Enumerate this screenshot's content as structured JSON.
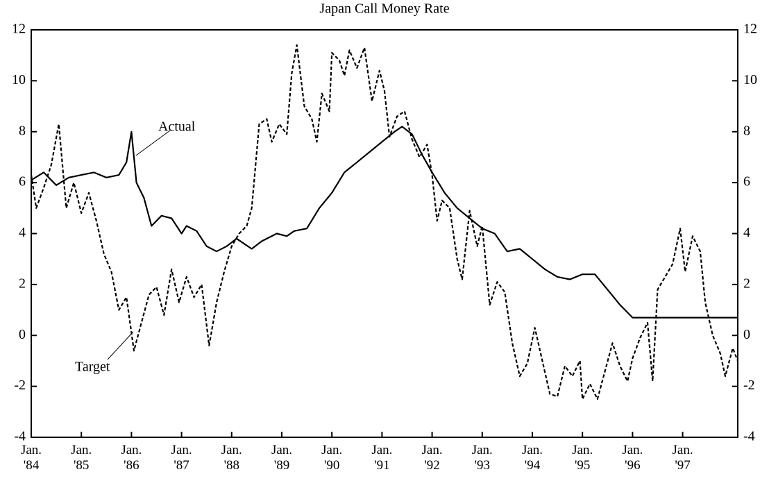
{
  "chart_data": {
    "type": "line",
    "title": "Japan Call Money Rate",
    "annotations": [
      "Actual",
      "Target"
    ],
    "xlim": [
      1984,
      1998.1
    ],
    "xticks": [
      {
        "value": 1984,
        "label": "Jan. '84"
      },
      {
        "value": 1985,
        "label": "Jan. '85"
      },
      {
        "value": 1986,
        "label": "Jan. '86"
      },
      {
        "value": 1987,
        "label": "Jan. '87"
      },
      {
        "value": 1988,
        "label": "Jan. '88"
      },
      {
        "value": 1989,
        "label": "Jan. '89"
      },
      {
        "value": 1990,
        "label": "Jan. '90"
      },
      {
        "value": 1991,
        "label": "Jan. '91"
      },
      {
        "value": 1992,
        "label": "Jan. '92"
      },
      {
        "value": 1993,
        "label": "Jan. '93"
      },
      {
        "value": 1994,
        "label": "Jan. '94"
      },
      {
        "value": 1995,
        "label": "Jan. '95"
      },
      {
        "value": 1996,
        "label": "Jan. '96"
      },
      {
        "value": 1997,
        "label": "Jan. '97"
      }
    ],
    "ylim": [
      -4,
      12
    ],
    "yticks": [
      -4,
      -2,
      0,
      2,
      4,
      6,
      8,
      10,
      12
    ],
    "y2lim": [
      -4,
      12
    ],
    "y2ticks": [
      -4,
      -2,
      0,
      2,
      4,
      6,
      8,
      10,
      12
    ],
    "grid": false,
    "series": [
      {
        "name": "Actual",
        "color": "#000000",
        "dash": false,
        "x": [
          1984.0,
          1984.25,
          1984.5,
          1984.75,
          1985.0,
          1985.25,
          1985.5,
          1985.75,
          1985.9,
          1986.0,
          1986.1,
          1986.25,
          1986.4,
          1986.6,
          1986.8,
          1987.0,
          1987.1,
          1987.3,
          1987.5,
          1987.7,
          1987.9,
          1988.1,
          1988.25,
          1988.4,
          1988.6,
          1988.9,
          1989.1,
          1989.25,
          1989.5,
          1989.75,
          1990.0,
          1990.25,
          1990.5,
          1990.75,
          1991.0,
          1991.25,
          1991.4,
          1991.6,
          1991.8,
          1992.0,
          1992.25,
          1992.5,
          1992.75,
          1993.0,
          1993.25,
          1993.5,
          1993.75,
          1994.0,
          1994.25,
          1994.5,
          1994.75,
          1995.0,
          1995.25,
          1995.5,
          1995.75,
          1996.0,
          1996.5,
          1997.0,
          1997.5,
          1998.1
        ],
        "values": [
          6.1,
          6.4,
          5.9,
          6.2,
          6.3,
          6.4,
          6.2,
          6.3,
          6.8,
          8.0,
          6.0,
          5.4,
          4.3,
          4.7,
          4.6,
          4.0,
          4.3,
          4.1,
          3.5,
          3.3,
          3.5,
          3.8,
          3.6,
          3.4,
          3.7,
          4.0,
          3.9,
          4.1,
          4.2,
          5.0,
          5.6,
          6.4,
          6.8,
          7.2,
          7.6,
          8.0,
          8.2,
          7.9,
          7.1,
          6.4,
          5.6,
          5.0,
          4.6,
          4.2,
          4.0,
          3.3,
          3.4,
          3.0,
          2.6,
          2.3,
          2.2,
          2.4,
          2.4,
          1.8,
          1.2,
          0.7,
          0.7,
          0.7,
          0.7,
          0.7
        ]
      },
      {
        "name": "Target",
        "color": "#000000",
        "dash": true,
        "x": [
          1984.0,
          1984.1,
          1984.25,
          1984.4,
          1984.55,
          1984.7,
          1984.85,
          1985.0,
          1985.15,
          1985.3,
          1985.45,
          1985.6,
          1985.75,
          1985.9,
          1986.05,
          1986.2,
          1986.35,
          1986.5,
          1986.65,
          1986.8,
          1986.95,
          1987.1,
          1987.25,
          1987.4,
          1987.55,
          1987.7,
          1987.85,
          1988.0,
          1988.15,
          1988.3,
          1988.4,
          1988.55,
          1988.7,
          1988.8,
          1988.95,
          1989.1,
          1989.2,
          1989.3,
          1989.45,
          1989.6,
          1989.7,
          1989.8,
          1989.95,
          1990.0,
          1990.15,
          1990.25,
          1990.35,
          1990.5,
          1990.65,
          1990.8,
          1990.95,
          1991.05,
          1991.15,
          1991.3,
          1991.45,
          1991.6,
          1991.75,
          1991.9,
          1992.0,
          1992.1,
          1992.2,
          1992.35,
          1992.5,
          1992.6,
          1992.75,
          1992.9,
          1993.0,
          1993.15,
          1993.3,
          1993.45,
          1993.6,
          1993.75,
          1993.9,
          1994.05,
          1994.2,
          1994.35,
          1994.5,
          1994.65,
          1994.8,
          1994.95,
          1995.0,
          1995.15,
          1995.3,
          1995.45,
          1995.6,
          1995.75,
          1995.9,
          1996.0,
          1996.15,
          1996.3,
          1996.4,
          1996.5,
          1996.65,
          1996.8,
          1996.95,
          1997.05,
          1997.2,
          1997.35,
          1997.45,
          1997.6,
          1997.75,
          1997.85,
          1998.0,
          1998.1
        ],
        "values": [
          6.3,
          5.0,
          5.8,
          6.7,
          8.3,
          5.0,
          6.0,
          4.8,
          5.6,
          4.5,
          3.2,
          2.5,
          1.0,
          1.5,
          -0.6,
          0.5,
          1.6,
          1.9,
          0.8,
          2.6,
          1.3,
          2.3,
          1.5,
          2.0,
          -0.4,
          1.3,
          2.5,
          3.5,
          4.0,
          4.3,
          5.0,
          8.3,
          8.5,
          7.6,
          8.3,
          7.9,
          10.3,
          11.4,
          9.0,
          8.5,
          7.6,
          9.5,
          8.8,
          11.1,
          10.8,
          10.2,
          11.2,
          10.5,
          11.3,
          9.2,
          10.4,
          9.6,
          7.8,
          8.6,
          8.8,
          7.7,
          7.0,
          7.5,
          6.3,
          4.5,
          5.3,
          5.0,
          3.0,
          2.2,
          4.9,
          3.5,
          4.3,
          1.2,
          2.1,
          1.7,
          -0.3,
          -1.6,
          -1.1,
          0.3,
          -1.0,
          -2.3,
          -2.4,
          -1.2,
          -1.6,
          -1.0,
          -2.5,
          -1.9,
          -2.5,
          -1.4,
          -0.3,
          -1.2,
          -1.8,
          -0.9,
          -0.1,
          0.5,
          -1.8,
          1.8,
          2.3,
          2.8,
          4.2,
          2.5,
          3.9,
          3.3,
          1.3,
          0.0,
          -0.7,
          -1.6,
          -0.5,
          -1.0
        ]
      }
    ]
  }
}
